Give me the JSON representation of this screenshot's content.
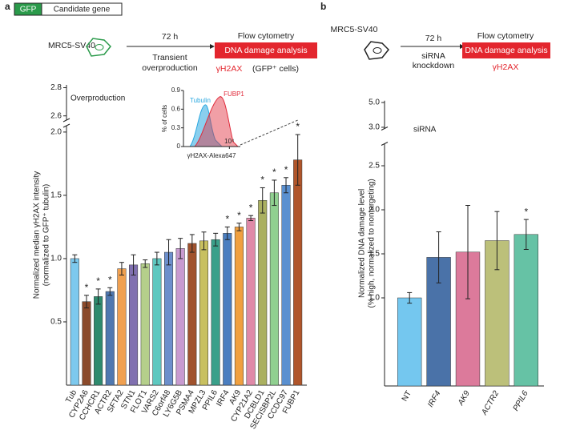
{
  "panel_a": {
    "label": "a",
    "gfp": "GFP",
    "gene": "Candidate gene",
    "cell_line": "MRC5-SV40",
    "time": "72 h",
    "treatment": [
      "Transient",
      "overproduction"
    ],
    "assay": "Flow cytometry",
    "analysis": "DNA damage analysis",
    "marker": "γH2AX",
    "gating": "(GFP⁺ cells)"
  },
  "panel_b": {
    "label": "b",
    "cell_line": "MRC5-SV40",
    "time": "72 h",
    "treatment": [
      "siRNA",
      "knockdown"
    ],
    "assay": "Flow cytometry",
    "analysis": "DNA damage analysis",
    "marker": "γH2AX"
  },
  "chart_data": [
    {
      "type": "bar",
      "annotation": "Overproduction",
      "ylabel": [
        "Normalized median γH2AX intensity",
        "(normalized to GFP⁺ tubulin)"
      ],
      "categories": [
        "Tub",
        "CYP2A6",
        "CCHCR1",
        "ACTR2",
        "SFTA2",
        "STN1",
        "FLOT1",
        "VARS2",
        "C6orf48",
        "LY6G5B",
        "PSMA4",
        "MPZL3",
        "PPIL6",
        "IRF4",
        "AK9",
        "CYP21A2",
        "DCBLD1",
        "SECISBP2L",
        "CCDC97",
        "FUBP1"
      ],
      "values": [
        1.0,
        0.66,
        0.7,
        0.74,
        0.92,
        0.95,
        0.96,
        1.0,
        1.05,
        1.08,
        1.12,
        1.14,
        1.15,
        1.2,
        1.25,
        1.32,
        1.46,
        1.52,
        1.58,
        1.78
      ],
      "errors": [
        0.03,
        0.05,
        0.06,
        0.03,
        0.05,
        0.08,
        0.03,
        0.05,
        0.1,
        0.08,
        0.07,
        0.07,
        0.05,
        0.05,
        0.03,
        0.02,
        0.1,
        0.1,
        0.06,
        0.2
      ],
      "colors": [
        "#7dc9ee",
        "#8b4a2b",
        "#2e8b6e",
        "#4f78b0",
        "#f0a050",
        "#8070b0",
        "#b5cf8b",
        "#5ec8c0",
        "#6c8fcc",
        "#c89bd0",
        "#a0522d",
        "#c8c060",
        "#3aa08a",
        "#4a7ec0",
        "#f0a040",
        "#e08aa8",
        "#aab060",
        "#90d090",
        "#5a90d0",
        "#b0552a"
      ],
      "significance": [
        null,
        "*",
        "*",
        "*",
        null,
        null,
        null,
        null,
        null,
        null,
        null,
        null,
        null,
        "*",
        "*",
        "*",
        "*",
        "*",
        "*",
        "*"
      ],
      "ylim": [
        0,
        2.05
      ],
      "yticks": [
        0.5,
        {
          "value": 1.0,
          "label": "1.0"
        },
        1.5,
        {
          "value": 2.0,
          "label": "2.0"
        }
      ],
      "ylim_upper": [
        2.57,
        2.82
      ],
      "yticks_upper": [
        2.6,
        2.8
      ],
      "inset": {
        "ylabel": "% of cells",
        "xlabel": "γH2AX-Alexa647",
        "ylim": [
          0,
          0.9
        ],
        "yticks": [
          0,
          0.3,
          0.6,
          0.9
        ],
        "log_x": true,
        "xlim": [
          100,
          30000
        ],
        "xticks": [
          {
            "value": 10000,
            "label": "10⁴"
          }
        ],
        "series": [
          {
            "name": "Tubulin",
            "color": "#2aa8e0"
          },
          {
            "name": "FUBP1",
            "color": "#e02a3a"
          }
        ]
      }
    },
    {
      "type": "bar",
      "annotation": "siRNA",
      "ylabel": [
        "Normalized DNA damage level",
        "(% high, normalized to nontargeting)"
      ],
      "categories": [
        "NT",
        "IRF4",
        "AK9",
        "ACTR2",
        "PPIL6"
      ],
      "values": [
        1.0,
        1.46,
        1.52,
        1.65,
        1.72
      ],
      "errors": [
        0.06,
        0.29,
        0.53,
        0.33,
        0.17
      ],
      "colors": [
        "#74c7ef",
        "#4a72a8",
        "#dc7a9b",
        "#bcc07a",
        "#66c2a5"
      ],
      "significance": [
        null,
        null,
        null,
        null,
        "*"
      ],
      "ylim": [
        0,
        2.75
      ],
      "yticks": [
        {
          "value": 1.0,
          "label": "1.0"
        },
        1.5,
        {
          "value": 2.0,
          "label": "2.0"
        },
        2.5
      ],
      "ylim_upper": [
        2.9,
        5.15
      ],
      "yticks_upper": [
        {
          "value": 3.0,
          "label": "3.0"
        },
        {
          "value": 5.0,
          "label": "5.0"
        }
      ]
    }
  ]
}
